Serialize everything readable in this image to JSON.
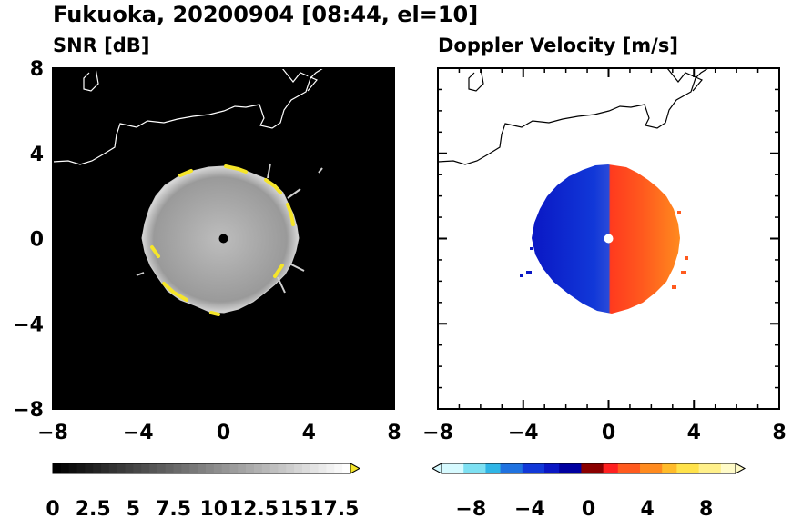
{
  "figure": {
    "title": "Fukuoka, 20200904 [08:44, el=10]"
  },
  "chart_data": [
    {
      "type": "heatmap",
      "title": "SNR [dB]",
      "xlim": [
        -8,
        8
      ],
      "ylim": [
        -8,
        8
      ],
      "xticks": [
        -8,
        -4,
        0,
        4,
        8
      ],
      "yticks": [
        -8,
        -4,
        0,
        4,
        8
      ],
      "xtick_labels": [
        "−8",
        "−4",
        "0",
        "4",
        "8"
      ],
      "ytick_labels": [
        "−8",
        "−4",
        "0",
        "4",
        "8"
      ],
      "background": "#000000",
      "radar_center": [
        0,
        0
      ],
      "echo_radius_approx": 3.6,
      "colorbar": {
        "range": [
          0,
          18.5
        ],
        "colors": [
          "#000000",
          "#ffffff"
        ],
        "extend": "max",
        "extend_color": "#f5e52a",
        "tick_values": [
          0,
          2.5,
          5,
          7.5,
          10,
          12.5,
          15,
          17.5
        ],
        "tick_labels": [
          "0",
          "2.5",
          "5",
          "7.5",
          "10",
          "12.5",
          "15",
          "17.5"
        ]
      }
    },
    {
      "type": "heatmap",
      "title": "Doppler Velocity [m/s]",
      "xlim": [
        -8,
        8
      ],
      "ylim": [
        -8,
        8
      ],
      "xticks": [
        -8,
        -4,
        0,
        4,
        8
      ],
      "yticks": [
        -8,
        -4,
        0,
        4,
        8
      ],
      "xtick_labels": [
        "−8",
        "−4",
        "0",
        "4",
        "8"
      ],
      "background": "#ffffff",
      "radar_center": [
        0,
        0
      ],
      "echo_radius_approx": 3.6,
      "colorbar": {
        "range": [
          -10,
          10
        ],
        "extend": "both",
        "tick_values": [
          -8,
          -4,
          0,
          4,
          8
        ],
        "tick_labels": [
          "−8",
          "−4",
          "0",
          "4",
          "8"
        ],
        "colors": [
          "#d6faff",
          "#7de0f2",
          "#2fb5e6",
          "#1f72e0",
          "#1138d8",
          "#0a17c4",
          "#0000a0",
          "#8a0000",
          "#ff2020",
          "#ff5a1e",
          "#ff8a1e",
          "#ffbb2a",
          "#ffe24a",
          "#fff08a",
          "#fffbc8"
        ]
      },
      "pattern": "negative (blue) to the west, positive (red/orange) to the east"
    }
  ]
}
